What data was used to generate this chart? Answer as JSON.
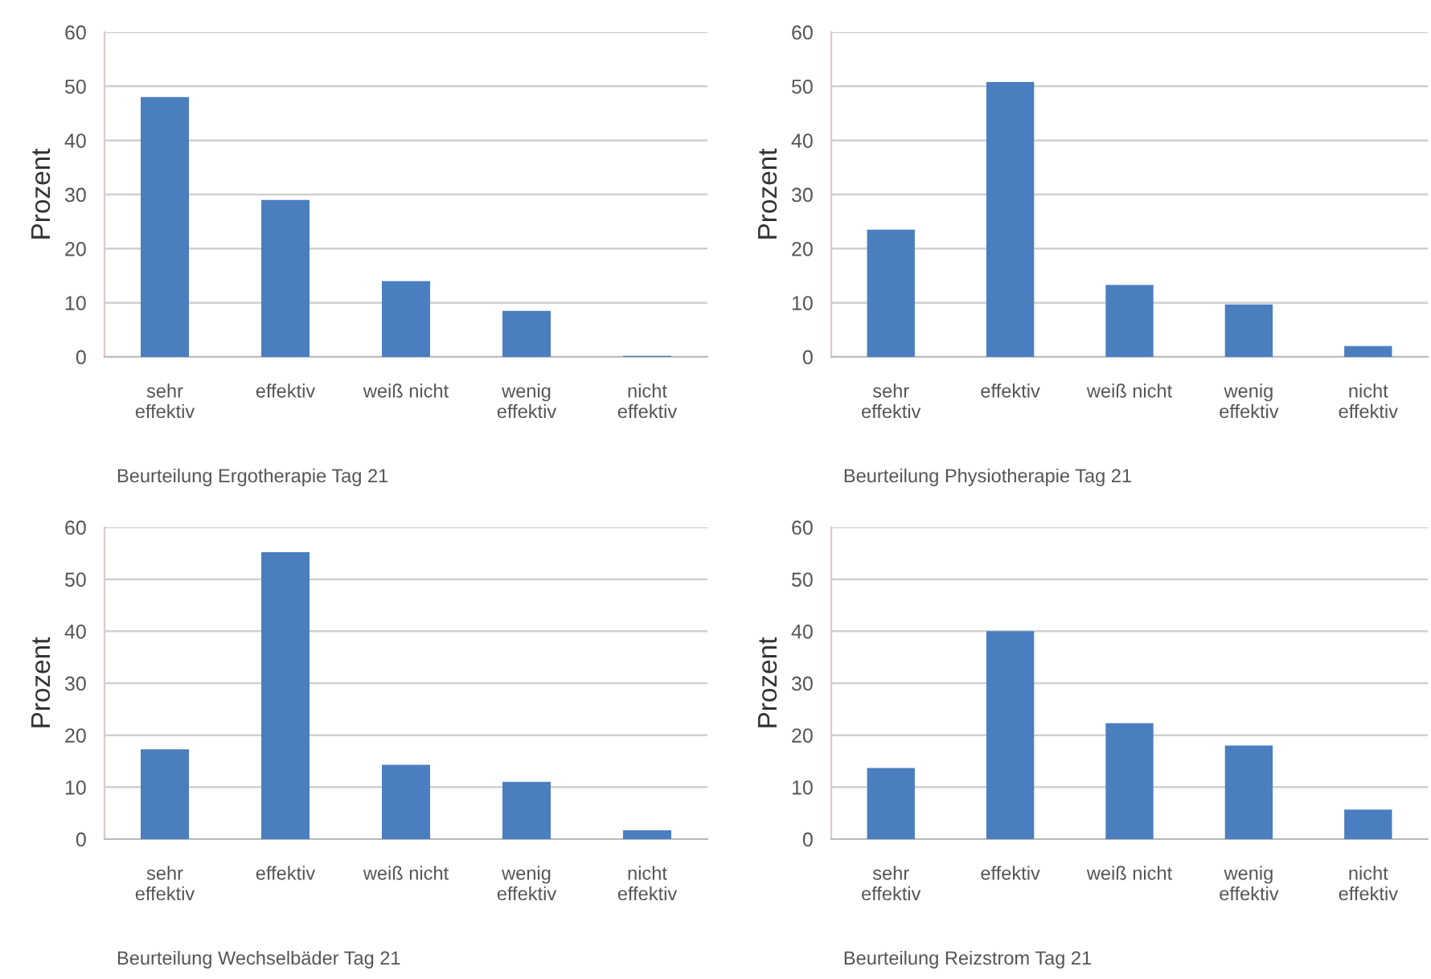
{
  "chart_data": [
    {
      "type": "bar",
      "title": "Beurteilung Ergotherapie Tag 21",
      "ylabel": "Prozent",
      "categories": [
        "sehr\neffektiv",
        "effektiv",
        "weiß nicht",
        "wenig\neffektiv",
        "nicht\neffektiv"
      ],
      "values": [
        48,
        29,
        14,
        8.5,
        0.2
      ],
      "color": "#4a7ebf",
      "ylim": [
        0,
        60
      ],
      "yticks": [
        0,
        10,
        20,
        30,
        40,
        50,
        60
      ],
      "grid": "y"
    },
    {
      "type": "bar",
      "title": "Beurteilung Physiotherapie Tag 21",
      "ylabel": "Prozent",
      "categories": [
        "sehr\neffektiv",
        "effektiv",
        "weiß nicht",
        "wenig\neffektiv",
        "nicht\neffektiv"
      ],
      "values": [
        23.5,
        50.8,
        13.3,
        9.7,
        2
      ],
      "color": "#4a7ebf",
      "ylim": [
        0,
        60
      ],
      "yticks": [
        0,
        10,
        20,
        30,
        40,
        50,
        60
      ],
      "grid": "y"
    },
    {
      "type": "bar",
      "title": "Beurteilung Wechselbäder Tag 21",
      "ylabel": "Prozent",
      "categories": [
        "sehr\neffektiv",
        "effektiv",
        "weiß nicht",
        "wenig\neffektiv",
        "nicht\neffektiv"
      ],
      "values": [
        17.3,
        55.2,
        14.3,
        11,
        1.7
      ],
      "color": "#4a7ebf",
      "ylim": [
        0,
        60
      ],
      "yticks": [
        0,
        10,
        20,
        30,
        40,
        50,
        60
      ],
      "grid": "y"
    },
    {
      "type": "bar",
      "title": "Beurteilung Reizstrom Tag 21",
      "ylabel": "Prozent",
      "categories": [
        "sehr\neffektiv",
        "effektiv",
        "weiß nicht",
        "wenig\neffektiv",
        "nicht\neffektiv"
      ],
      "values": [
        13.7,
        40,
        22.3,
        18,
        5.7
      ],
      "color": "#4a7ebf",
      "ylim": [
        0,
        60
      ],
      "yticks": [
        0,
        10,
        20,
        30,
        40,
        50,
        60
      ],
      "grid": "y"
    }
  ]
}
